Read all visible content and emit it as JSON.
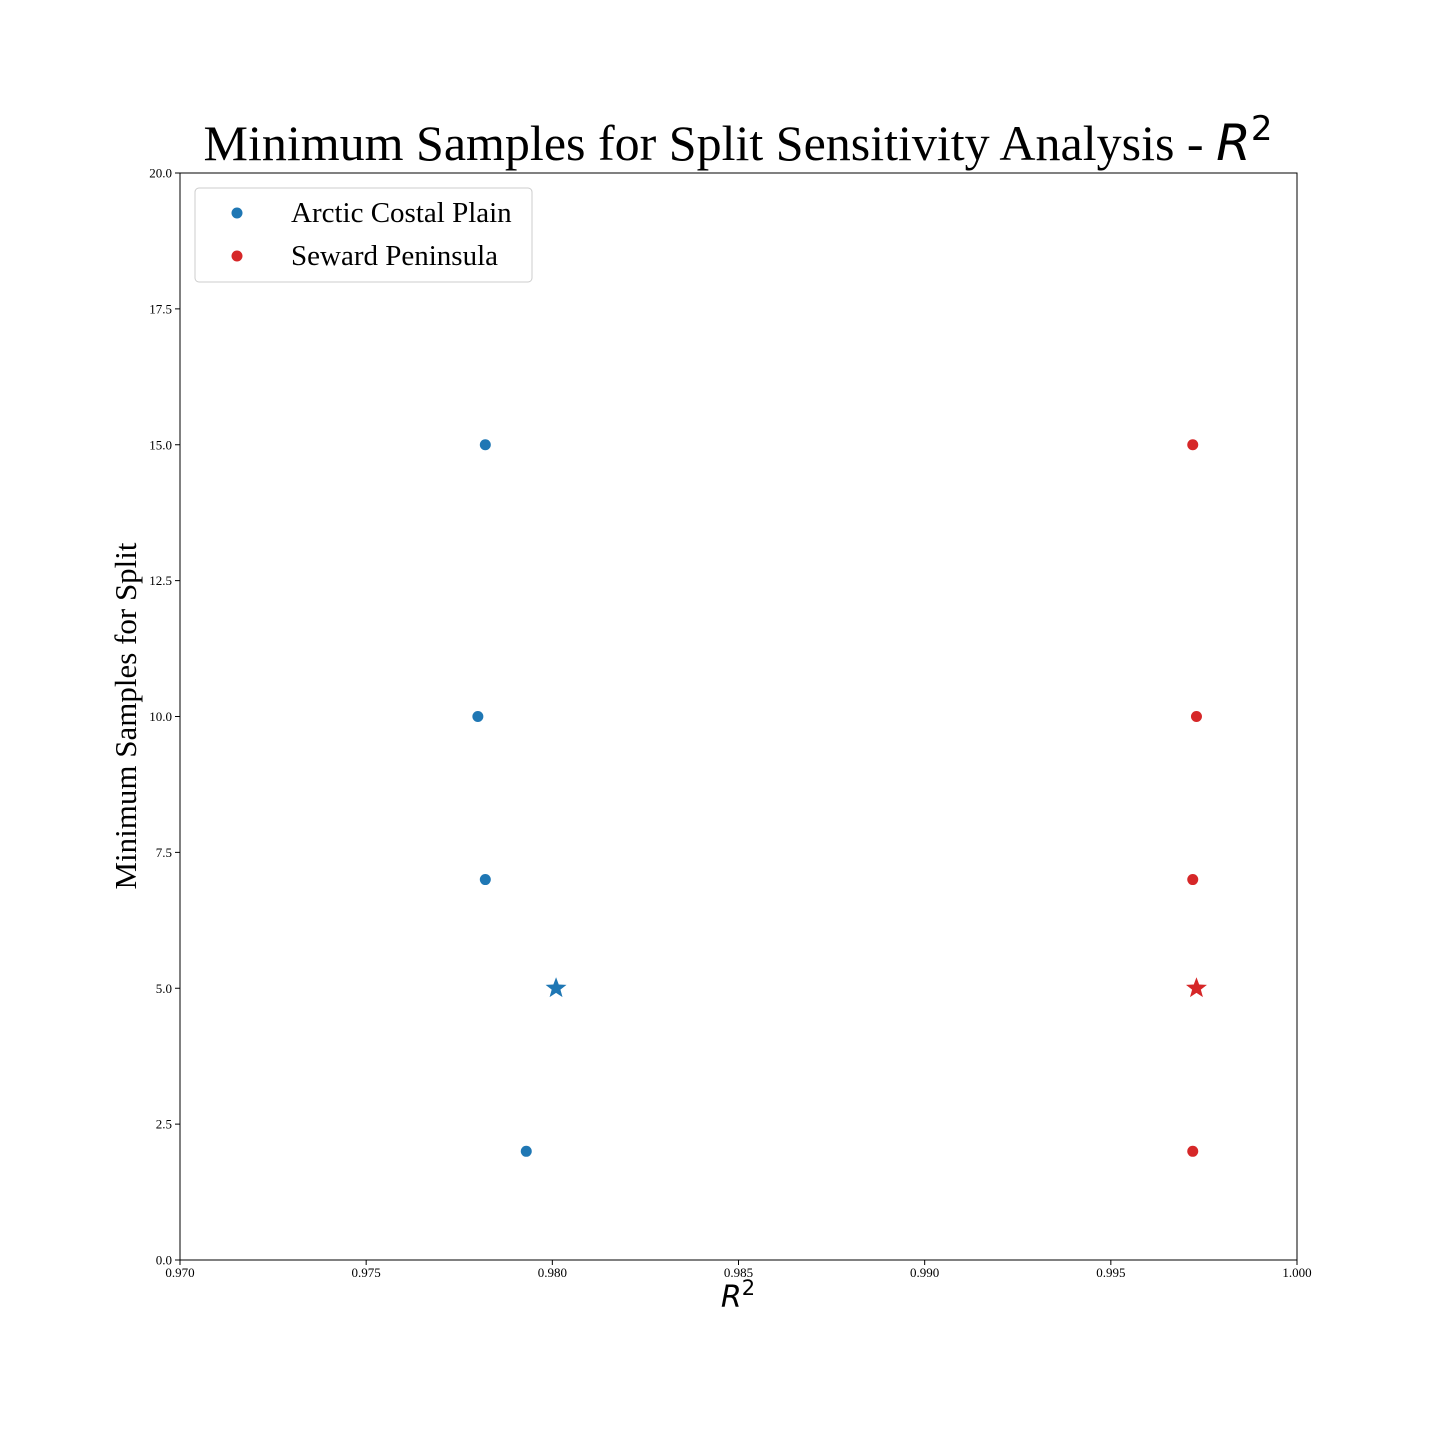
{
  "chart_data": {
    "type": "scatter",
    "title": "Minimum Samples for Split Sensitivity Analysis - ",
    "title_math": "R",
    "title_math_sup": "2",
    "xlabel": "R",
    "xlabel_sup": "2",
    "ylabel": "Minimum Samples for Split",
    "xlim": [
      0.97,
      1.0
    ],
    "ylim": [
      0,
      20
    ],
    "x_ticks": [
      "0.970",
      "0.975",
      "0.980",
      "0.985",
      "0.990",
      "0.995",
      "1.000"
    ],
    "y_ticks": [
      "0.0",
      "2.5",
      "5.0",
      "7.5",
      "10.0",
      "12.5",
      "15.0",
      "17.5",
      "20.0"
    ],
    "grid": false,
    "legend_position": "upper-left",
    "series": [
      {
        "name": "Arctic Costal Plain",
        "color": "#1f77b4",
        "points": [
          {
            "x": 0.9782,
            "y": 15
          },
          {
            "x": 0.978,
            "y": 10
          },
          {
            "x": 0.9782,
            "y": 7
          },
          {
            "x": 0.9793,
            "y": 2
          }
        ],
        "best": {
          "x": 0.9801,
          "y": 5
        }
      },
      {
        "name": "Seward Peninsula",
        "color": "#d62728",
        "points": [
          {
            "x": 0.9972,
            "y": 15
          },
          {
            "x": 0.9973,
            "y": 10
          },
          {
            "x": 0.9972,
            "y": 7
          },
          {
            "x": 0.9972,
            "y": 2
          }
        ],
        "best": {
          "x": 0.9973,
          "y": 5
        }
      }
    ]
  }
}
